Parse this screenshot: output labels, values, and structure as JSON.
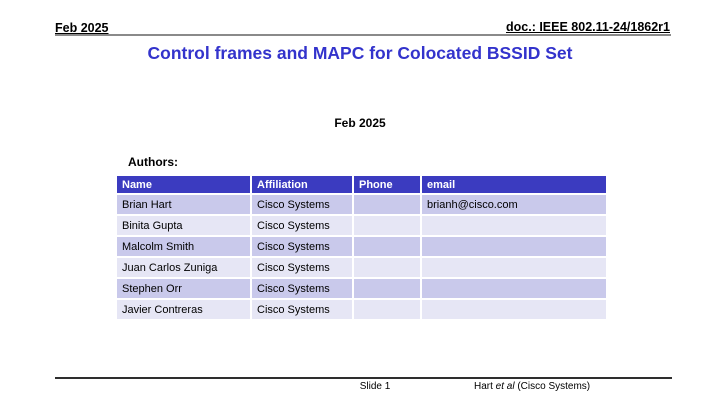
{
  "header": {
    "left": "Feb 2025",
    "right": "doc.: IEEE 802.11-24/1862r1"
  },
  "title": "Control frames and MAPC for Colocated BSSID Set",
  "subtitle_date": "Feb 2025",
  "authors_label": "Authors:",
  "authors_table": {
    "columns": [
      "Name",
      "Affiliation",
      "Phone",
      "email"
    ],
    "rows": [
      [
        "Brian Hart",
        "Cisco Systems",
        "",
        "brianh@cisco.com"
      ],
      [
        "Binita Gupta",
        "Cisco Systems",
        "",
        ""
      ],
      [
        "Malcolm Smith",
        "Cisco Systems",
        "",
        ""
      ],
      [
        "Juan Carlos Zuniga",
        "Cisco Systems",
        "",
        ""
      ],
      [
        "Stephen Orr",
        "Cisco Systems",
        "",
        ""
      ],
      [
        "Javier Contreras",
        "Cisco Systems",
        "",
        ""
      ]
    ]
  },
  "footer": {
    "slide_label": "Slide 1",
    "credit_prefix": "Hart ",
    "credit_italic": "et al",
    "credit_suffix": " (Cisco Systems)"
  },
  "colors": {
    "title": "#3333cc",
    "table_header_bg": "#3b3bc0",
    "row_odd_bg": "#c9c9eb",
    "row_even_bg": "#e6e6f5",
    "header_rule": "#8a8a8a",
    "footer_rule": "#2e2e2e"
  }
}
